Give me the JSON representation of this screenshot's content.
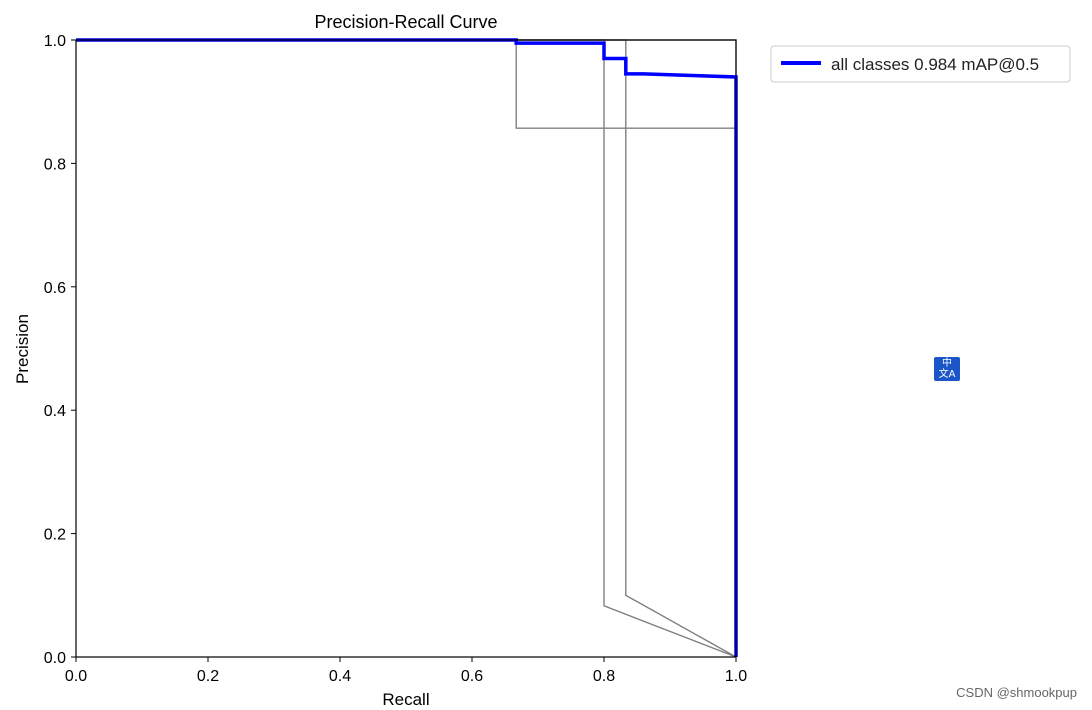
{
  "chart_data": {
    "type": "line",
    "title": "Precision-Recall Curve",
    "xlabel": "Recall",
    "ylabel": "Precision",
    "xlim": [
      0.0,
      1.0
    ],
    "ylim": [
      0.0,
      1.0
    ],
    "x_ticks": [
      "0.0",
      "0.2",
      "0.4",
      "0.6",
      "0.8",
      "1.0"
    ],
    "y_ticks": [
      "0.0",
      "0.2",
      "0.4",
      "0.6",
      "0.8",
      "1.0"
    ],
    "grid": false,
    "legend_position": "outside-right-top",
    "series": [
      {
        "name": "all classes 0.984 mAP@0.5",
        "color": "#0000ff",
        "points": [
          [
            0.0,
            1.0
          ],
          [
            0.667,
            1.0
          ],
          [
            0.667,
            0.995
          ],
          [
            0.8,
            0.995
          ],
          [
            0.8,
            0.97
          ],
          [
            0.833,
            0.97
          ],
          [
            0.833,
            0.945
          ],
          [
            0.86,
            0.945
          ],
          [
            1.0,
            0.94
          ],
          [
            1.0,
            0.0
          ]
        ]
      },
      {
        "color": "#808080",
        "points": [
          [
            0.0,
            1.0
          ],
          [
            0.667,
            1.0
          ],
          [
            0.667,
            0.857
          ],
          [
            1.0,
            0.857
          ],
          [
            1.0,
            0.0
          ]
        ]
      },
      {
        "color": "#808080",
        "points": [
          [
            0.0,
            1.0
          ],
          [
            0.8,
            1.0
          ],
          [
            0.8,
            0.083
          ],
          [
            1.0,
            0.0
          ]
        ]
      },
      {
        "color": "#808080",
        "points": [
          [
            0.0,
            1.0
          ],
          [
            0.833,
            1.0
          ],
          [
            0.833,
            0.1
          ],
          [
            1.0,
            0.0
          ]
        ]
      },
      {
        "color": "#808080",
        "points": [
          [
            0.0,
            1.0
          ],
          [
            1.0,
            1.0
          ],
          [
            1.0,
            0.0
          ]
        ]
      }
    ]
  },
  "translate_badge": {
    "top": "中",
    "bottom": "文A",
    "icon": "translate-icon",
    "color": "#1a56c8"
  },
  "watermark": "CSDN @shmookpup"
}
